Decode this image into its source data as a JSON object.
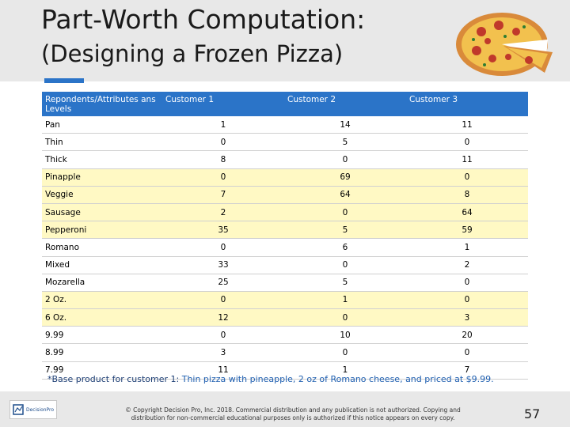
{
  "slide": {
    "title_line1": "Part-Worth Computation:",
    "title_line2": "(Designing a Frozen Pizza)",
    "accent_color": "#2b74c8"
  },
  "table": {
    "headers": [
      "Repondents/Attributes ans Levels",
      "Customer 1",
      "Customer 2",
      "Customer 3"
    ],
    "rows": [
      {
        "level": "Pan",
        "c1": "1",
        "c2": "14",
        "c3": "11",
        "highlight": false
      },
      {
        "level": "Thin",
        "c1": "0",
        "c2": "5",
        "c3": "0",
        "highlight": false
      },
      {
        "level": "Thick",
        "c1": "8",
        "c2": "0",
        "c3": "11",
        "highlight": false
      },
      {
        "level": "Pinapple",
        "c1": "0",
        "c2": "69",
        "c3": "0",
        "highlight": true
      },
      {
        "level": "Veggie",
        "c1": "7",
        "c2": "64",
        "c3": "8",
        "highlight": true
      },
      {
        "level": "Sausage",
        "c1": "2",
        "c2": "0",
        "c3": "64",
        "highlight": true
      },
      {
        "level": "Pepperoni",
        "c1": "35",
        "c2": "5",
        "c3": "59",
        "highlight": true
      },
      {
        "level": "Romano",
        "c1": "0",
        "c2": "6",
        "c3": "1",
        "highlight": false
      },
      {
        "level": "Mixed",
        "c1": "33",
        "c2": "0",
        "c3": "2",
        "highlight": false
      },
      {
        "level": "Mozarella",
        "c1": "25",
        "c2": "5",
        "c3": "0",
        "highlight": false
      },
      {
        "level": "2 Oz.",
        "c1": "0",
        "c2": "1",
        "c3": "0",
        "highlight": true
      },
      {
        "level": "6 Oz.",
        "c1": "12",
        "c2": "0",
        "c3": "3",
        "highlight": true
      },
      {
        "level": "9.99",
        "c1": "0",
        "c2": "10",
        "c3": "20",
        "highlight": false
      },
      {
        "level": "8.99",
        "c1": "3",
        "c2": "0",
        "c3": "0",
        "highlight": false
      },
      {
        "level": "7.99",
        "c1": "11",
        "c2": "1",
        "c3": "7",
        "highlight": false
      }
    ],
    "header_color": "#2b74c8",
    "highlight_color": "#fff9c4"
  },
  "footnote": {
    "prefix": "*Base product for customer 1: ",
    "text": "Thin pizza with pineapple, 2 oz of Romano cheese, and priced at $9.99."
  },
  "footer": {
    "logo_text": "DecisionPro",
    "copyright": "© Copyright Decision Pro, Inc. 2018. Commercial distribution and any publication is not authorized. Copying and distribution for non-commercial educational purposes only is authorized if this notice appears on every copy.",
    "page_number": "57"
  },
  "icons": {
    "pizza": "pizza-image",
    "logo": "decisionpro-logo-icon"
  }
}
